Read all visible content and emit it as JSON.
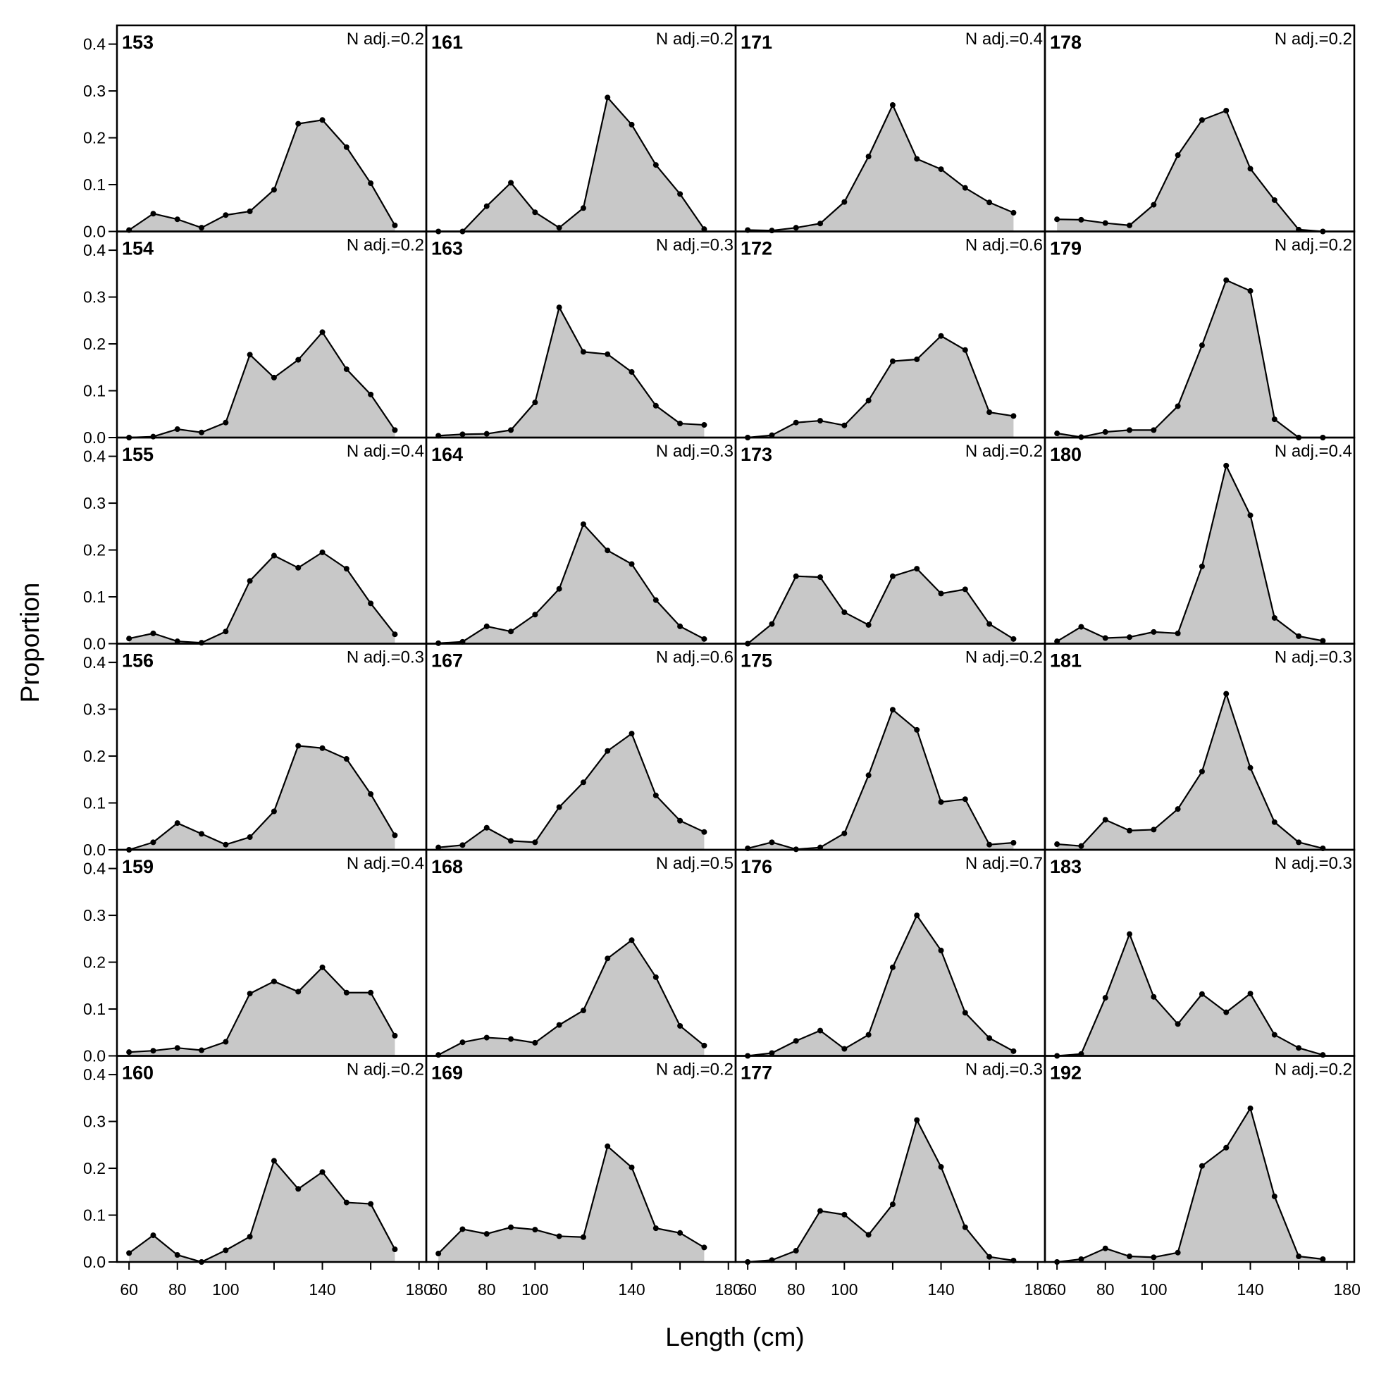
{
  "chart_data": {
    "type": "area",
    "xlabel": "Length (cm)",
    "ylabel": "Proportion",
    "xlim": [
      55,
      183
    ],
    "ylim": [
      0,
      0.44
    ],
    "x_ticks": [
      60,
      80,
      100,
      140,
      180
    ],
    "x_tick_labels": [
      "60",
      "80",
      "100",
      "140",
      "180"
    ],
    "y_ticks": [
      0.0,
      0.1,
      0.2,
      0.3,
      0.4
    ],
    "y_tick_labels": [
      "0.0",
      "0.1",
      "0.2",
      "0.3",
      "0.4"
    ],
    "x": [
      60,
      70,
      80,
      90,
      100,
      110,
      120,
      130,
      140,
      150,
      160,
      170
    ],
    "panels": [
      {
        "title": "153",
        "n_adj": "N adj.=0.2",
        "values": [
          0.003,
          0.038,
          0.026,
          0.008,
          0.035,
          0.043,
          0.089,
          0.23,
          0.238,
          0.18,
          0.103,
          0.013
        ]
      },
      {
        "title": "161",
        "n_adj": "N adj.=0.2",
        "values": [
          0.0,
          0.0,
          0.054,
          0.104,
          0.041,
          0.008,
          0.05,
          0.286,
          0.228,
          0.142,
          0.08,
          0.005
        ]
      },
      {
        "title": "171",
        "n_adj": "N adj.=0.4",
        "values": [
          0.003,
          0.002,
          0.008,
          0.017,
          0.063,
          0.16,
          0.27,
          0.155,
          0.133,
          0.093,
          0.062,
          0.04
        ]
      },
      {
        "title": "178",
        "n_adj": "N adj.=0.2",
        "values": [
          0.026,
          0.025,
          0.018,
          0.013,
          0.057,
          0.163,
          0.238,
          0.258,
          0.134,
          0.067,
          0.004,
          0.0
        ]
      },
      {
        "title": "154",
        "n_adj": "N adj.=0.2",
        "values": [
          0.0,
          0.002,
          0.018,
          0.011,
          0.032,
          0.177,
          0.128,
          0.166,
          0.225,
          0.146,
          0.092,
          0.016
        ]
      },
      {
        "title": "163",
        "n_adj": "N adj.=0.3",
        "values": [
          0.004,
          0.007,
          0.008,
          0.016,
          0.075,
          0.278,
          0.183,
          0.178,
          0.14,
          0.068,
          0.03,
          0.027
        ]
      },
      {
        "title": "172",
        "n_adj": "N adj.=0.6",
        "values": [
          0.0,
          0.005,
          0.032,
          0.036,
          0.026,
          0.079,
          0.163,
          0.167,
          0.217,
          0.187,
          0.054,
          0.046
        ]
      },
      {
        "title": "179",
        "n_adj": "N adj.=0.2",
        "values": [
          0.009,
          0.001,
          0.012,
          0.016,
          0.016,
          0.067,
          0.197,
          0.336,
          0.313,
          0.039,
          0.0,
          0.0
        ]
      },
      {
        "title": "155",
        "n_adj": "N adj.=0.4",
        "values": [
          0.011,
          0.022,
          0.005,
          0.002,
          0.026,
          0.134,
          0.188,
          0.162,
          0.195,
          0.16,
          0.086,
          0.02
        ]
      },
      {
        "title": "164",
        "n_adj": "N adj.=0.3",
        "values": [
          0.001,
          0.004,
          0.037,
          0.026,
          0.062,
          0.117,
          0.255,
          0.199,
          0.17,
          0.093,
          0.037,
          0.01
        ]
      },
      {
        "title": "173",
        "n_adj": "N adj.=0.2",
        "values": [
          0.0,
          0.042,
          0.144,
          0.142,
          0.067,
          0.04,
          0.144,
          0.16,
          0.107,
          0.116,
          0.042,
          0.01
        ]
      },
      {
        "title": "180",
        "n_adj": "N adj.=0.4",
        "values": [
          0.005,
          0.036,
          0.012,
          0.014,
          0.025,
          0.022,
          0.165,
          0.38,
          0.274,
          0.055,
          0.016,
          0.006
        ]
      },
      {
        "title": "156",
        "n_adj": "N adj.=0.3",
        "values": [
          0.0,
          0.016,
          0.057,
          0.034,
          0.011,
          0.027,
          0.082,
          0.222,
          0.217,
          0.194,
          0.119,
          0.031
        ]
      },
      {
        "title": "167",
        "n_adj": "N adj.=0.6",
        "values": [
          0.005,
          0.01,
          0.047,
          0.019,
          0.016,
          0.091,
          0.144,
          0.211,
          0.248,
          0.116,
          0.062,
          0.038
        ]
      },
      {
        "title": "175",
        "n_adj": "N adj.=0.2",
        "values": [
          0.003,
          0.016,
          0.001,
          0.005,
          0.035,
          0.159,
          0.299,
          0.256,
          0.102,
          0.108,
          0.011,
          0.015
        ]
      },
      {
        "title": "181",
        "n_adj": "N adj.=0.3",
        "values": [
          0.012,
          0.008,
          0.064,
          0.041,
          0.043,
          0.087,
          0.167,
          0.333,
          0.175,
          0.059,
          0.016,
          0.003
        ]
      },
      {
        "title": "159",
        "n_adj": "N adj.=0.4",
        "values": [
          0.008,
          0.011,
          0.017,
          0.012,
          0.03,
          0.133,
          0.159,
          0.137,
          0.189,
          0.135,
          0.135,
          0.043
        ]
      },
      {
        "title": "168",
        "n_adj": "N adj.=0.5",
        "values": [
          0.002,
          0.029,
          0.039,
          0.036,
          0.028,
          0.066,
          0.097,
          0.208,
          0.247,
          0.168,
          0.064,
          0.022
        ]
      },
      {
        "title": "176",
        "n_adj": "N adj.=0.7",
        "values": [
          0.0,
          0.006,
          0.032,
          0.054,
          0.015,
          0.045,
          0.189,
          0.3,
          0.225,
          0.092,
          0.038,
          0.01
        ]
      },
      {
        "title": "183",
        "n_adj": "N adj.=0.3",
        "values": [
          0.0,
          0.004,
          0.124,
          0.26,
          0.126,
          0.068,
          0.132,
          0.093,
          0.133,
          0.045,
          0.017,
          0.002
        ]
      },
      {
        "title": "160",
        "n_adj": "N adj.=0.2",
        "values": [
          0.019,
          0.057,
          0.015,
          0.0,
          0.025,
          0.054,
          0.216,
          0.156,
          0.192,
          0.127,
          0.124,
          0.027
        ]
      },
      {
        "title": "169",
        "n_adj": "N adj.=0.2",
        "values": [
          0.018,
          0.07,
          0.06,
          0.074,
          0.069,
          0.055,
          0.053,
          0.247,
          0.202,
          0.072,
          0.062,
          0.031
        ]
      },
      {
        "title": "177",
        "n_adj": "N adj.=0.3",
        "values": [
          0.0,
          0.004,
          0.024,
          0.109,
          0.101,
          0.058,
          0.123,
          0.303,
          0.203,
          0.074,
          0.011,
          0.003
        ]
      },
      {
        "title": "192",
        "n_adj": "N adj.=0.2",
        "values": [
          0.0,
          0.006,
          0.029,
          0.012,
          0.01,
          0.02,
          0.205,
          0.244,
          0.328,
          0.14,
          0.012,
          0.006
        ]
      }
    ],
    "colors": {
      "fill": "#c8c8c8",
      "line": "#000000",
      "frame": "#000000"
    }
  }
}
